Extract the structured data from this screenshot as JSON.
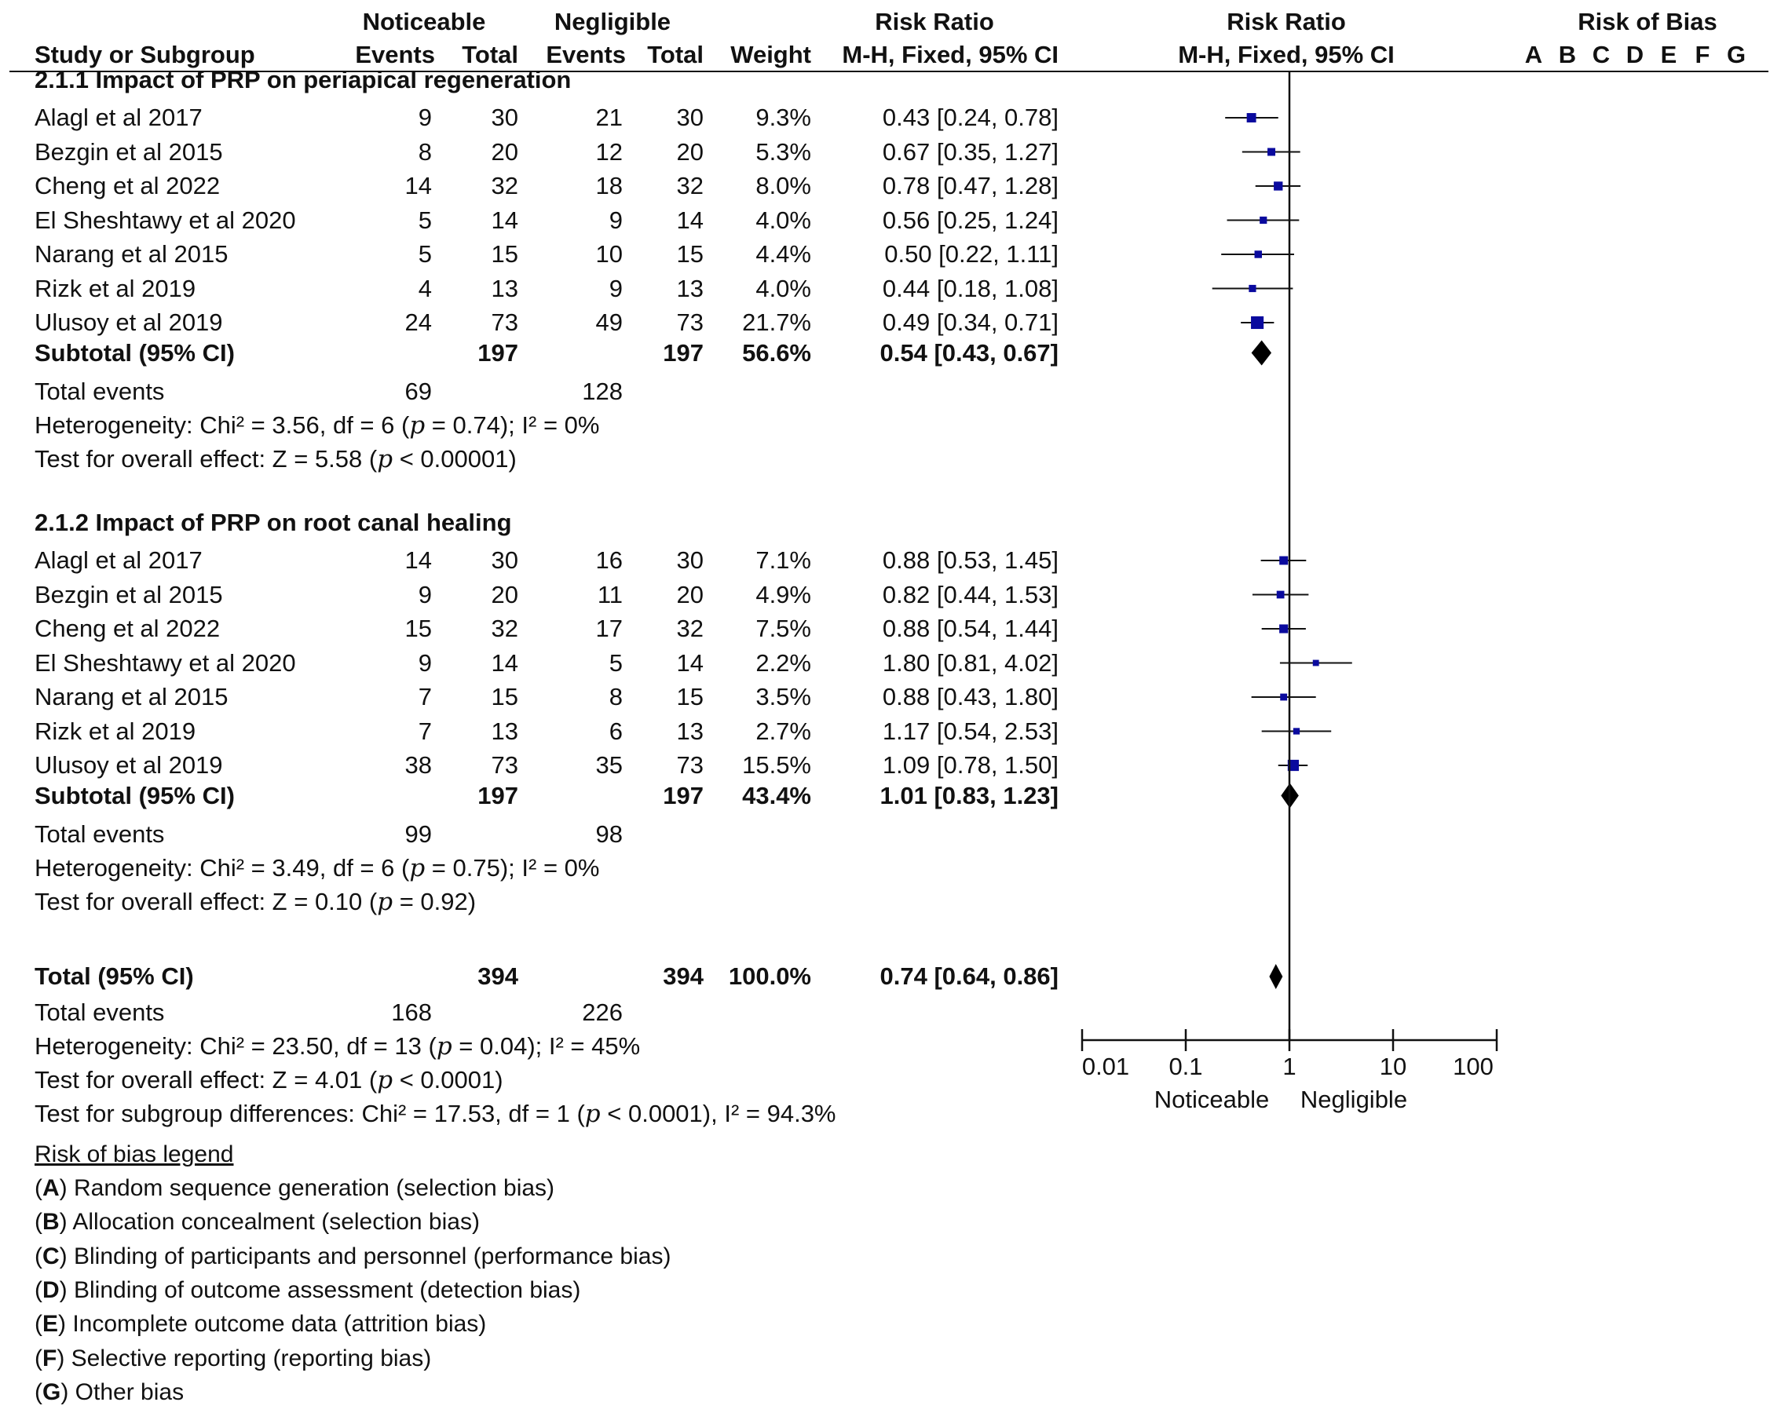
{
  "header": {
    "group1": "Noticeable",
    "group2": "Negligible",
    "study_col": "Study or Subgroup",
    "events": "Events",
    "total": "Total",
    "weight": "Weight",
    "rr_title": "Risk Ratio",
    "rr_method": "M-H, Fixed, 95% CI",
    "plot_title": "Risk Ratio",
    "plot_method": "M-H, Fixed, 95% CI",
    "rob_title": "Risk of Bias",
    "rob_letters": [
      "A",
      "B",
      "C",
      "D",
      "E",
      "F",
      "G"
    ]
  },
  "subgroups": [
    {
      "title": "2.1.1 Impact of PRP on periapical regeneration",
      "studies": [
        {
          "name": "Alagl et al 2017",
          "e1": "9",
          "t1": "30",
          "e2": "21",
          "t2": "30",
          "weight": "9.3%",
          "ci_text": "0.43 [0.24, 0.78]",
          "rr": 0.43,
          "lo": 0.24,
          "hi": 0.78,
          "w": 9.3
        },
        {
          "name": "Bezgin et al 2015",
          "e1": "8",
          "t1": "20",
          "e2": "12",
          "t2": "20",
          "weight": "5.3%",
          "ci_text": "0.67 [0.35, 1.27]",
          "rr": 0.67,
          "lo": 0.35,
          "hi": 1.27,
          "w": 5.3
        },
        {
          "name": "Cheng et al 2022",
          "e1": "14",
          "t1": "32",
          "e2": "18",
          "t2": "32",
          "weight": "8.0%",
          "ci_text": "0.78 [0.47, 1.28]",
          "rr": 0.78,
          "lo": 0.47,
          "hi": 1.28,
          "w": 8.0
        },
        {
          "name": "El Sheshtawy et al 2020",
          "e1": "5",
          "t1": "14",
          "e2": "9",
          "t2": "14",
          "weight": "4.0%",
          "ci_text": "0.56 [0.25, 1.24]",
          "rr": 0.56,
          "lo": 0.25,
          "hi": 1.24,
          "w": 4.0
        },
        {
          "name": "Narang et al 2015",
          "e1": "5",
          "t1": "15",
          "e2": "10",
          "t2": "15",
          "weight": "4.4%",
          "ci_text": "0.50 [0.22, 1.11]",
          "rr": 0.5,
          "lo": 0.22,
          "hi": 1.11,
          "w": 4.4
        },
        {
          "name": "Rizk et al 2019",
          "e1": "4",
          "t1": "13",
          "e2": "9",
          "t2": "13",
          "weight": "4.0%",
          "ci_text": "0.44 [0.18, 1.08]",
          "rr": 0.44,
          "lo": 0.18,
          "hi": 1.08,
          "w": 4.0
        },
        {
          "name": "Ulusoy et al 2019",
          "e1": "24",
          "t1": "73",
          "e2": "49",
          "t2": "73",
          "weight": "21.7%",
          "ci_text": "0.49 [0.34, 0.71]",
          "rr": 0.49,
          "lo": 0.34,
          "hi": 0.71,
          "w": 21.7
        }
      ],
      "subtotal": {
        "label": "Subtotal (95% CI)",
        "t1": "197",
        "t2": "197",
        "weight": "56.6%",
        "ci_text": "0.54 [0.43, 0.67]",
        "rr": 0.54,
        "lo": 0.43,
        "hi": 0.67
      },
      "total_events": {
        "label": "Total events",
        "e1": "69",
        "e2": "128"
      },
      "heterogeneity": {
        "prefix": "Heterogeneity: Chi² = 3.56, df = 6 (",
        "p": "p",
        "suffix": " = 0.74); I² = 0%"
      },
      "overall": {
        "prefix": "Test for overall effect: Z = 5.58 (",
        "p": "p",
        "suffix": " < 0.00001)"
      }
    },
    {
      "title": "2.1.2 Impact of PRP on root canal healing",
      "studies": [
        {
          "name": "Alagl et al 2017",
          "e1": "14",
          "t1": "30",
          "e2": "16",
          "t2": "30",
          "weight": "7.1%",
          "ci_text": "0.88 [0.53, 1.45]",
          "rr": 0.88,
          "lo": 0.53,
          "hi": 1.45,
          "w": 7.1
        },
        {
          "name": "Bezgin et al 2015",
          "e1": "9",
          "t1": "20",
          "e2": "11",
          "t2": "20",
          "weight": "4.9%",
          "ci_text": "0.82 [0.44, 1.53]",
          "rr": 0.82,
          "lo": 0.44,
          "hi": 1.53,
          "w": 4.9
        },
        {
          "name": "Cheng et al 2022",
          "e1": "15",
          "t1": "32",
          "e2": "17",
          "t2": "32",
          "weight": "7.5%",
          "ci_text": "0.88 [0.54, 1.44]",
          "rr": 0.88,
          "lo": 0.54,
          "hi": 1.44,
          "w": 7.5
        },
        {
          "name": "El Sheshtawy et al 2020",
          "e1": "9",
          "t1": "14",
          "e2": "5",
          "t2": "14",
          "weight": "2.2%",
          "ci_text": "1.80 [0.81, 4.02]",
          "rr": 1.8,
          "lo": 0.81,
          "hi": 4.02,
          "w": 2.2
        },
        {
          "name": "Narang et al 2015",
          "e1": "7",
          "t1": "15",
          "e2": "8",
          "t2": "15",
          "weight": "3.5%",
          "ci_text": "0.88 [0.43, 1.80]",
          "rr": 0.88,
          "lo": 0.43,
          "hi": 1.8,
          "w": 3.5
        },
        {
          "name": "Rizk et al 2019",
          "e1": "7",
          "t1": "13",
          "e2": "6",
          "t2": "13",
          "weight": "2.7%",
          "ci_text": "1.17 [0.54, 2.53]",
          "rr": 1.17,
          "lo": 0.54,
          "hi": 2.53,
          "w": 2.7
        },
        {
          "name": "Ulusoy et al 2019",
          "e1": "38",
          "t1": "73",
          "e2": "35",
          "t2": "73",
          "weight": "15.5%",
          "ci_text": "1.09 [0.78, 1.50]",
          "rr": 1.09,
          "lo": 0.78,
          "hi": 1.5,
          "w": 15.5
        }
      ],
      "subtotal": {
        "label": "Subtotal (95% CI)",
        "t1": "197",
        "t2": "197",
        "weight": "43.4%",
        "ci_text": "1.01 [0.83, 1.23]",
        "rr": 1.01,
        "lo": 0.83,
        "hi": 1.23
      },
      "total_events": {
        "label": "Total events",
        "e1": "99",
        "e2": "98"
      },
      "heterogeneity": {
        "prefix": "Heterogeneity: Chi² = 3.49, df = 6 (",
        "p": "p",
        "suffix": " = 0.75); I² = 0%"
      },
      "overall": {
        "prefix": "Test for overall effect: Z = 0.10 (",
        "p": "p",
        "suffix": " = 0.92)"
      }
    }
  ],
  "total": {
    "label": "Total (95% CI)",
    "t1": "394",
    "t2": "394",
    "weight": "100.0%",
    "ci_text": "0.74 [0.64, 0.86]",
    "rr": 0.74,
    "lo": 0.64,
    "hi": 0.86,
    "total_events": {
      "label": "Total events",
      "e1": "168",
      "e2": "226"
    },
    "heterogeneity": {
      "prefix": "Heterogeneity: Chi² = 23.50, df = 13 (",
      "p": "p",
      "suffix": " = 0.04); I² = 45%"
    },
    "overall": {
      "prefix": "Test for overall effect: Z = 4.01 (",
      "p": "p",
      "suffix": " < 0.0001)"
    },
    "subgroup_diff": {
      "prefix": "Test for subgroup differences: Chi² = 17.53, df = 1 (",
      "p": "p",
      "suffix": " < 0.0001), I² = 94.3%"
    }
  },
  "legend": {
    "title": "Risk of bias legend",
    "items": [
      {
        "letter": "A",
        "text": " Random sequence generation (selection bias)"
      },
      {
        "letter": "B",
        "text": " Allocation concealment (selection bias)"
      },
      {
        "letter": "C",
        "text": " Blinding of participants and personnel (performance bias)"
      },
      {
        "letter": "D",
        "text": " Blinding of outcome assessment (detection bias)"
      },
      {
        "letter": "E",
        "text": " Incomplete outcome data (attrition bias)"
      },
      {
        "letter": "F",
        "text": " Selective reporting (reporting bias)"
      },
      {
        "letter": "G",
        "text": " Other bias"
      }
    ]
  },
  "chart_data": {
    "type": "forest",
    "scale": "log",
    "xlim": [
      0.01,
      100
    ],
    "reference_line": 1,
    "x_ticks": [
      0.01,
      0.1,
      1,
      10,
      100
    ],
    "x_tick_labels": [
      "0.01",
      "0.1",
      "1",
      "10",
      "100"
    ],
    "favours_left": "Noticeable",
    "favours_right": "Negligible",
    "marker_color": "#0a0a9e",
    "diamond_color": "#000000"
  }
}
